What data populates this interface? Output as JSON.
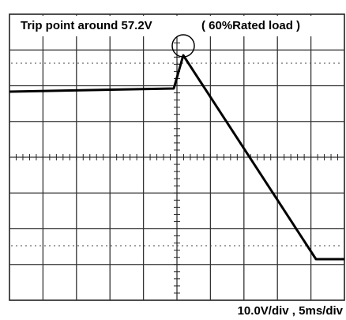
{
  "header": {
    "title": "Trip point around 57.2V",
    "condition": "( 60%Rated load )"
  },
  "footer": {
    "scale": "10.0V/div , 5ms/div"
  }
}
